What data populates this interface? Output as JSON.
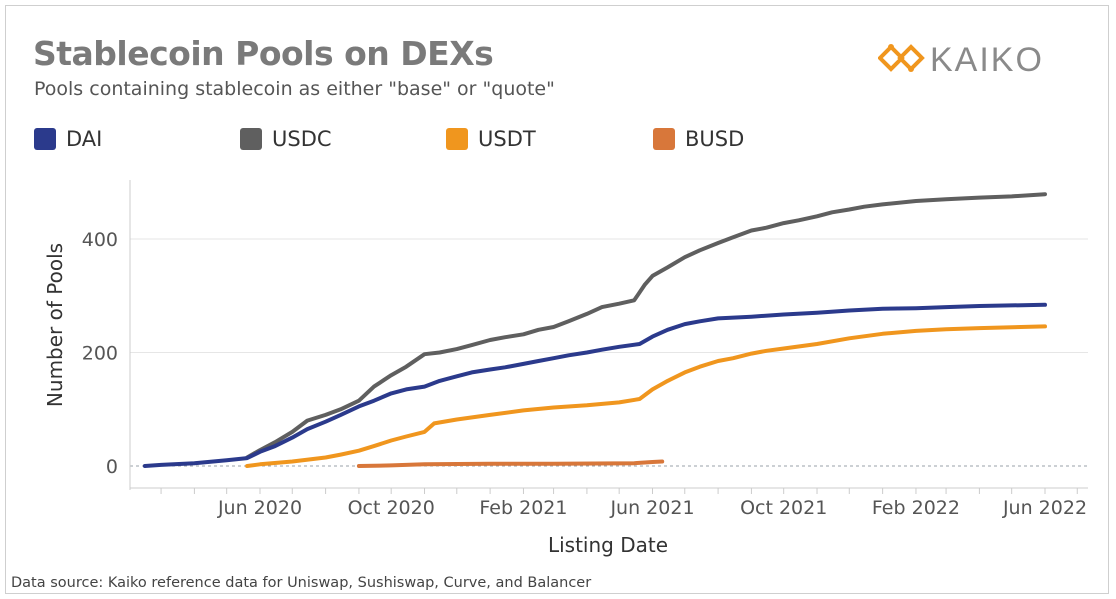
{
  "header": {
    "title": "Stablecoin Pools on DEXs",
    "subtitle": "Pools containing stablecoin as either \"base\" or \"quote\"",
    "logo_text": "KAIKO"
  },
  "footer": {
    "source": "Data source: Kaiko reference data for Uniswap, Sushiswap, Curve, and Balancer"
  },
  "colors": {
    "DAI": "#2b3a8c",
    "USDC": "#5f5f5f",
    "USDT": "#f0961e",
    "BUSD": "#d8773a",
    "logo_orange": "#f0961e",
    "logo_gray": "#8a8a8a"
  },
  "chart_data": {
    "type": "line",
    "title": "Stablecoin Pools on DEXs",
    "subtitle": "Pools containing stablecoin as either \"base\" or \"quote\"",
    "xlabel": "Listing Date",
    "ylabel": "Number of Pools",
    "x_tick_labels": [
      "Jun 2020",
      "Oct 2020",
      "Feb 2021",
      "Jun 2021",
      "Oct 2021",
      "Feb 2022",
      "Jun 2022"
    ],
    "y_tick_labels": [
      "0",
      "200",
      "400"
    ],
    "ylim": [
      0,
      500
    ],
    "legend_placement": "top",
    "grid": true,
    "series": [
      {
        "name": "USDC",
        "color_key": "USDC",
        "points": [
          [
            "2020-05-20",
            15
          ],
          [
            "2020-06-01",
            28
          ],
          [
            "2020-06-15",
            42
          ],
          [
            "2020-07-01",
            60
          ],
          [
            "2020-07-15",
            80
          ],
          [
            "2020-08-01",
            90
          ],
          [
            "2020-08-15",
            100
          ],
          [
            "2020-09-01",
            115
          ],
          [
            "2020-09-15",
            140
          ],
          [
            "2020-10-01",
            160
          ],
          [
            "2020-10-15",
            175
          ],
          [
            "2020-11-01",
            197
          ],
          [
            "2020-11-15",
            200
          ],
          [
            "2020-12-01",
            206
          ],
          [
            "2020-12-15",
            213
          ],
          [
            "2021-01-01",
            222
          ],
          [
            "2021-01-15",
            227
          ],
          [
            "2021-02-01",
            232
          ],
          [
            "2021-02-15",
            240
          ],
          [
            "2021-03-01",
            245
          ],
          [
            "2021-03-15",
            255
          ],
          [
            "2021-04-01",
            268
          ],
          [
            "2021-04-15",
            280
          ],
          [
            "2021-05-01",
            286
          ],
          [
            "2021-05-15",
            292
          ],
          [
            "2021-05-25",
            320
          ],
          [
            "2021-06-01",
            335
          ],
          [
            "2021-06-15",
            350
          ],
          [
            "2021-07-01",
            368
          ],
          [
            "2021-07-15",
            380
          ],
          [
            "2021-08-01",
            393
          ],
          [
            "2021-08-15",
            403
          ],
          [
            "2021-09-01",
            415
          ],
          [
            "2021-09-15",
            420
          ],
          [
            "2021-10-01",
            428
          ],
          [
            "2021-10-15",
            433
          ],
          [
            "2021-11-01",
            440
          ],
          [
            "2021-11-15",
            447
          ],
          [
            "2021-12-01",
            452
          ],
          [
            "2021-12-15",
            457
          ],
          [
            "2022-01-01",
            461
          ],
          [
            "2022-02-01",
            467
          ],
          [
            "2022-03-01",
            470
          ],
          [
            "2022-04-01",
            473
          ],
          [
            "2022-05-01",
            475
          ],
          [
            "2022-06-01",
            479
          ]
        ]
      },
      {
        "name": "DAI",
        "color_key": "DAI",
        "points": [
          [
            "2020-02-15",
            0
          ],
          [
            "2020-03-01",
            2
          ],
          [
            "2020-04-01",
            5
          ],
          [
            "2020-05-01",
            10
          ],
          [
            "2020-05-20",
            14
          ],
          [
            "2020-06-01",
            25
          ],
          [
            "2020-06-15",
            35
          ],
          [
            "2020-07-01",
            50
          ],
          [
            "2020-07-15",
            65
          ],
          [
            "2020-08-01",
            78
          ],
          [
            "2020-08-15",
            90
          ],
          [
            "2020-09-01",
            105
          ],
          [
            "2020-09-15",
            115
          ],
          [
            "2020-10-01",
            128
          ],
          [
            "2020-10-15",
            135
          ],
          [
            "2020-11-01",
            140
          ],
          [
            "2020-11-15",
            150
          ],
          [
            "2020-12-01",
            158
          ],
          [
            "2020-12-15",
            165
          ],
          [
            "2021-01-01",
            170
          ],
          [
            "2021-01-15",
            174
          ],
          [
            "2021-02-01",
            180
          ],
          [
            "2021-02-15",
            185
          ],
          [
            "2021-03-01",
            190
          ],
          [
            "2021-03-15",
            195
          ],
          [
            "2021-04-01",
            200
          ],
          [
            "2021-04-15",
            205
          ],
          [
            "2021-05-01",
            210
          ],
          [
            "2021-05-20",
            215
          ],
          [
            "2021-06-01",
            228
          ],
          [
            "2021-06-15",
            240
          ],
          [
            "2021-07-01",
            250
          ],
          [
            "2021-07-15",
            255
          ],
          [
            "2021-08-01",
            260
          ],
          [
            "2021-09-01",
            263
          ],
          [
            "2021-10-01",
            267
          ],
          [
            "2021-11-01",
            270
          ],
          [
            "2021-12-01",
            274
          ],
          [
            "2022-01-01",
            277
          ],
          [
            "2022-02-01",
            278
          ],
          [
            "2022-03-01",
            280
          ],
          [
            "2022-04-01",
            282
          ],
          [
            "2022-06-01",
            284
          ]
        ]
      },
      {
        "name": "USDT",
        "color_key": "USDT",
        "points": [
          [
            "2020-05-20",
            0
          ],
          [
            "2020-06-01",
            3
          ],
          [
            "2020-07-01",
            8
          ],
          [
            "2020-08-01",
            15
          ],
          [
            "2020-08-15",
            20
          ],
          [
            "2020-09-01",
            27
          ],
          [
            "2020-09-15",
            35
          ],
          [
            "2020-10-01",
            45
          ],
          [
            "2020-10-15",
            52
          ],
          [
            "2020-11-01",
            60
          ],
          [
            "2020-11-10",
            75
          ],
          [
            "2020-12-01",
            82
          ],
          [
            "2021-01-01",
            90
          ],
          [
            "2021-02-01",
            98
          ],
          [
            "2021-03-01",
            103
          ],
          [
            "2021-04-01",
            107
          ],
          [
            "2021-05-01",
            112
          ],
          [
            "2021-05-20",
            118
          ],
          [
            "2021-06-01",
            135
          ],
          [
            "2021-06-15",
            150
          ],
          [
            "2021-07-01",
            165
          ],
          [
            "2021-07-15",
            175
          ],
          [
            "2021-08-01",
            185
          ],
          [
            "2021-08-15",
            190
          ],
          [
            "2021-09-01",
            198
          ],
          [
            "2021-09-15",
            203
          ],
          [
            "2021-10-01",
            207
          ],
          [
            "2021-11-01",
            215
          ],
          [
            "2021-12-01",
            225
          ],
          [
            "2022-01-01",
            233
          ],
          [
            "2022-02-01",
            238
          ],
          [
            "2022-03-01",
            241
          ],
          [
            "2022-04-01",
            243
          ],
          [
            "2022-06-01",
            246
          ]
        ]
      },
      {
        "name": "BUSD",
        "color_key": "BUSD",
        "points": [
          [
            "2020-09-01",
            0
          ],
          [
            "2020-10-01",
            1
          ],
          [
            "2020-11-01",
            3
          ],
          [
            "2021-01-01",
            4
          ],
          [
            "2021-03-01",
            4
          ],
          [
            "2021-05-15",
            5
          ],
          [
            "2021-06-01",
            7
          ],
          [
            "2021-06-10",
            8
          ]
        ]
      }
    ]
  }
}
